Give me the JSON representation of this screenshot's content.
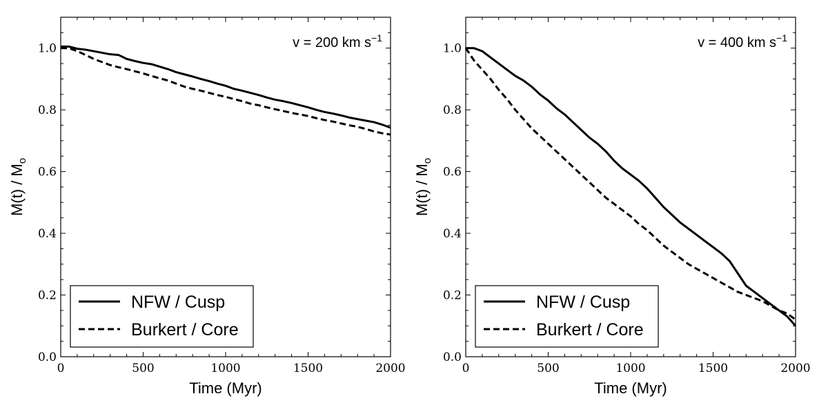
{
  "chart_data": [
    {
      "type": "line",
      "annotation": "v = 200 km s",
      "annotation_sup": "−1",
      "xlabel": "Time (Myr)",
      "ylabel": "M(t) / M",
      "ylabel_sub": "o",
      "xlim": [
        0,
        2000
      ],
      "ylim": [
        0,
        1.1
      ],
      "xticks": [
        0,
        500,
        1000,
        1500,
        2000
      ],
      "xtick_labels": [
        "0",
        "500",
        "1000",
        "1500",
        "2000"
      ],
      "yticks": [
        0.0,
        0.2,
        0.4,
        0.6,
        0.8,
        1.0
      ],
      "ytick_labels": [
        "0.0",
        "0.2",
        "0.4",
        "0.6",
        "0.8",
        "1.0"
      ],
      "legend_position": "bottom-left",
      "series": [
        {
          "name": "NFW / Cusp",
          "style": "solid",
          "x": [
            0,
            50,
            100,
            150,
            200,
            250,
            300,
            350,
            400,
            450,
            500,
            550,
            600,
            650,
            700,
            750,
            800,
            850,
            900,
            950,
            1000,
            1050,
            1100,
            1150,
            1200,
            1250,
            1300,
            1350,
            1400,
            1450,
            1500,
            1550,
            1600,
            1650,
            1700,
            1750,
            1800,
            1850,
            1900,
            1950,
            2000
          ],
          "y": [
            1.005,
            1.005,
            0.998,
            0.995,
            0.99,
            0.985,
            0.98,
            0.978,
            0.965,
            0.958,
            0.952,
            0.948,
            0.94,
            0.932,
            0.922,
            0.915,
            0.908,
            0.9,
            0.893,
            0.885,
            0.878,
            0.868,
            0.862,
            0.855,
            0.848,
            0.84,
            0.833,
            0.828,
            0.822,
            0.815,
            0.808,
            0.8,
            0.793,
            0.788,
            0.782,
            0.775,
            0.77,
            0.765,
            0.76,
            0.752,
            0.742
          ]
        },
        {
          "name": "Burkert / Core",
          "style": "dashed",
          "x": [
            0,
            50,
            100,
            150,
            200,
            250,
            300,
            350,
            400,
            450,
            500,
            550,
            600,
            650,
            700,
            750,
            800,
            850,
            900,
            950,
            1000,
            1050,
            1100,
            1150,
            1200,
            1250,
            1300,
            1350,
            1400,
            1450,
            1500,
            1550,
            1600,
            1650,
            1700,
            1750,
            1800,
            1850,
            1900,
            1950,
            2000
          ],
          "y": [
            1.0,
            1.0,
            0.99,
            0.978,
            0.965,
            0.955,
            0.945,
            0.938,
            0.932,
            0.925,
            0.918,
            0.91,
            0.902,
            0.895,
            0.885,
            0.875,
            0.868,
            0.862,
            0.855,
            0.848,
            0.842,
            0.835,
            0.828,
            0.82,
            0.815,
            0.808,
            0.802,
            0.796,
            0.79,
            0.785,
            0.78,
            0.773,
            0.767,
            0.762,
            0.756,
            0.75,
            0.745,
            0.738,
            0.73,
            0.724,
            0.72
          ]
        }
      ]
    },
    {
      "type": "line",
      "annotation": "v = 400 km s",
      "annotation_sup": "−1",
      "xlabel": "Time (Myr)",
      "ylabel": "M(t) / M",
      "ylabel_sub": "o",
      "xlim": [
        0,
        2000
      ],
      "ylim": [
        0,
        1.1
      ],
      "xticks": [
        0,
        500,
        1000,
        1500,
        2000
      ],
      "xtick_labels": [
        "0",
        "500",
        "1000",
        "1500",
        "2000"
      ],
      "yticks": [
        0.0,
        0.2,
        0.4,
        0.6,
        0.8,
        1.0
      ],
      "ytick_labels": [
        "0.0",
        "0.2",
        "0.4",
        "0.6",
        "0.8",
        "1.0"
      ],
      "legend_position": "bottom-left",
      "series": [
        {
          "name": "NFW / Cusp",
          "style": "solid",
          "x": [
            0,
            50,
            100,
            150,
            200,
            250,
            300,
            350,
            400,
            450,
            500,
            550,
            600,
            650,
            700,
            750,
            800,
            850,
            900,
            950,
            1000,
            1050,
            1100,
            1150,
            1200,
            1250,
            1300,
            1350,
            1400,
            1450,
            1500,
            1550,
            1600,
            1650,
            1700,
            1750,
            1800,
            1850,
            1900,
            1950,
            2000
          ],
          "y": [
            1.0,
            1.0,
            0.99,
            0.97,
            0.95,
            0.93,
            0.91,
            0.895,
            0.875,
            0.85,
            0.83,
            0.805,
            0.785,
            0.76,
            0.735,
            0.71,
            0.69,
            0.665,
            0.635,
            0.61,
            0.59,
            0.57,
            0.545,
            0.515,
            0.485,
            0.46,
            0.435,
            0.415,
            0.395,
            0.375,
            0.355,
            0.335,
            0.31,
            0.27,
            0.23,
            0.21,
            0.19,
            0.17,
            0.15,
            0.13,
            0.1
          ]
        },
        {
          "name": "Burkert / Core",
          "style": "dashed",
          "x": [
            0,
            50,
            100,
            150,
            200,
            250,
            300,
            350,
            400,
            450,
            500,
            550,
            600,
            650,
            700,
            750,
            800,
            850,
            900,
            950,
            1000,
            1050,
            1100,
            1150,
            1200,
            1250,
            1300,
            1350,
            1400,
            1450,
            1500,
            1550,
            1600,
            1650,
            1700,
            1750,
            1800,
            1850,
            1900,
            1950,
            2000
          ],
          "y": [
            1.0,
            0.96,
            0.93,
            0.9,
            0.865,
            0.835,
            0.8,
            0.77,
            0.74,
            0.715,
            0.69,
            0.665,
            0.64,
            0.615,
            0.59,
            0.565,
            0.54,
            0.515,
            0.495,
            0.475,
            0.455,
            0.43,
            0.41,
            0.385,
            0.36,
            0.34,
            0.32,
            0.3,
            0.285,
            0.27,
            0.255,
            0.24,
            0.225,
            0.21,
            0.2,
            0.19,
            0.18,
            0.165,
            0.15,
            0.14,
            0.12
          ]
        }
      ]
    }
  ]
}
